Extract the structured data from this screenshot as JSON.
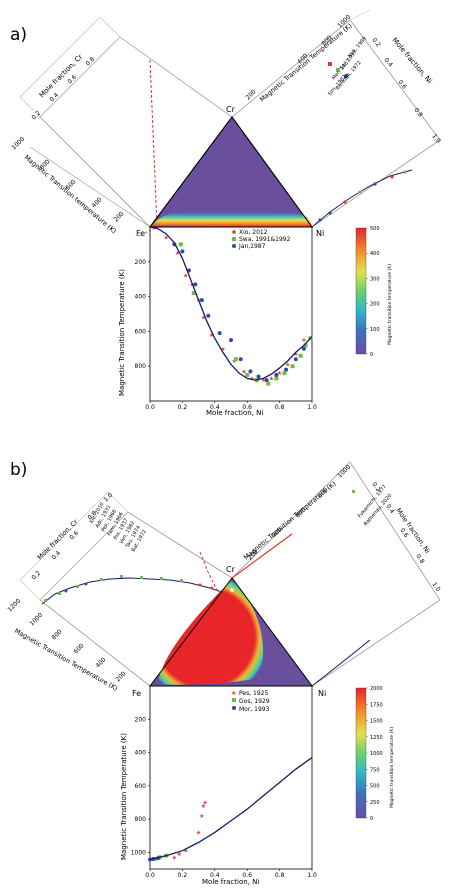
{
  "panels": [
    {
      "panel_label": "a)",
      "left_panel": {
        "axis_x_label": "Mole fraction, Cr",
        "axis_x_ticks": [
          "0.2",
          "0.4",
          "0.6",
          "0.8"
        ],
        "axis_y_label": "Magnetic Transition temperature (K)",
        "axis_y_ticks": [
          "200",
          "400",
          "600",
          "800",
          "1000"
        ]
      },
      "right_panel": {
        "axis_x_label": "Mole fraction, Ni",
        "axis_x_ticks": [
          "0.2",
          "0.4",
          "0.6",
          "0.8",
          "1.0"
        ],
        "axis_y_label": "Magnetic Transition Temperature (K)",
        "axis_y_ticks": [
          "200",
          "400",
          "600",
          "800",
          "1000"
        ],
        "legend": [
          "Nak, 1989",
          "Sai, 1937",
          "Mer, 1937",
          "Berezak, 1972",
          "Sim, 1982"
        ]
      },
      "vertices": {
        "top": "Cr",
        "left": "Fe",
        "right": "Ni"
      },
      "colorbar": {
        "label": "Magnetic transition temperature (K)",
        "ticks": [
          "0",
          "100",
          "200",
          "300",
          "400",
          "500"
        ]
      }
    },
    {
      "panel_label": "b)",
      "left_panel": {
        "axis_x_label": "Mole fraction, Cr",
        "axis_x_ticks": [
          "0.2",
          "0.4",
          "0.6",
          "0.8",
          "1.0"
        ],
        "axis_y_label": "Magnetic Transition Temperature (K)",
        "axis_y_ticks": [
          "200",
          "400",
          "600",
          "800",
          "1000",
          "1200"
        ],
        "legend": [
          "Xio, 2010",
          "Adc, 1931",
          "Pak, 1966",
          "Fam, 1966",
          "Iha, 1937",
          "Van, 1982",
          "Tau, 1974",
          "Bat, 1972"
        ]
      },
      "right_panel": {
        "axis_x_label": "Mole fraction, Ni",
        "axis_x_ticks": [
          "0.2",
          "0.4",
          "0.6",
          "0.8",
          "1.0"
        ],
        "axis_y_label": "Magnetic Transition Temperature (K)",
        "axis_y_ticks": [
          "200",
          "400",
          "600",
          "800",
          "1000"
        ],
        "legend": [
          "Fukamichi, 1977",
          "Rathenau, 2020"
        ]
      },
      "vertices": {
        "top": "Cr",
        "left": "Fe",
        "right": "Ni"
      },
      "colorbar": {
        "label": "Magnetic transition temperature (K)",
        "ticks": [
          "0",
          "250",
          "500",
          "750",
          "1000",
          "1250",
          "1500",
          "1750",
          "2000"
        ]
      }
    }
  ],
  "chart_data": [
    {
      "type": "scatter",
      "panel": "a) Fe-Ni binary",
      "xlabel": "Mole fraction, Ni",
      "ylabel": "Magnetic Transition Temperature (K)",
      "xlim": [
        0.0,
        1.0
      ],
      "ylim": [
        1000,
        0
      ],
      "x_ticks": [
        "0.0",
        "0.2",
        "0.4",
        "0.6",
        "0.8",
        "1.0"
      ],
      "y_ticks": [
        "200",
        "400",
        "600",
        "800"
      ],
      "legend_position": "top-right",
      "series": [
        {
          "name": "Xio, 2012",
          "marker": "star",
          "color": "#e03a2f",
          "x": [
            0.1,
            0.17,
            0.22,
            0.26,
            0.3,
            0.33,
            0.38,
            0.45,
            0.52,
            0.58,
            0.63,
            0.7,
            0.75,
            0.8,
            0.85,
            0.9,
            0.95
          ],
          "y": [
            60,
            150,
            280,
            330,
            420,
            520,
            620,
            700,
            770,
            830,
            870,
            880,
            870,
            840,
            790,
            730,
            650
          ]
        },
        {
          "name": "Swa, 1991&1992",
          "marker": "square",
          "color": "#6cbd45",
          "x": [
            0.19,
            0.27,
            0.53,
            0.6,
            0.66,
            0.73,
            0.78,
            0.83,
            0.88,
            0.93,
            0.96,
            0.99
          ],
          "y": [
            100,
            380,
            760,
            850,
            880,
            900,
            870,
            840,
            800,
            740,
            680,
            640
          ]
        },
        {
          "name": "Jan,1987",
          "marker": "circle",
          "color": "#2b4ea2",
          "x": [
            0.15,
            0.2,
            0.24,
            0.28,
            0.32,
            0.36,
            0.43,
            0.5,
            0.56,
            0.62,
            0.67,
            0.72,
            0.78,
            0.84,
            0.9,
            0.95
          ],
          "y": [
            100,
            140,
            250,
            330,
            420,
            510,
            610,
            650,
            760,
            830,
            860,
            880,
            850,
            820,
            760,
            700
          ]
        },
        {
          "name": "",
          "marker": "line",
          "color": "#1a1a6a",
          "x": [
            0.0,
            0.05,
            0.1,
            0.15,
            0.2,
            0.25,
            0.3,
            0.35,
            0.4,
            0.45,
            0.5,
            0.55,
            0.6,
            0.65,
            0.7,
            0.75,
            0.8,
            0.85,
            0.9,
            0.95,
            1.0
          ],
          "y": [
            0,
            10,
            40,
            90,
            180,
            300,
            420,
            540,
            640,
            720,
            790,
            840,
            870,
            880,
            870,
            845,
            810,
            770,
            720,
            680,
            630
          ]
        }
      ],
      "colorbar": {
        "label": "Magnetic transition temperature (K)",
        "range": [
          0,
          500
        ],
        "ticks": [
          "0",
          "100",
          "200",
          "300",
          "400",
          "500"
        ]
      }
    },
    {
      "type": "scatter",
      "panel": "b) Fe-Ni binary",
      "xlabel": "Mole fraction, Ni",
      "ylabel": "Magnetic Transition Temperature (K)",
      "xlim": [
        0.0,
        1.0
      ],
      "ylim": [
        1100,
        0
      ],
      "x_ticks": [
        "0.0",
        "0.2",
        "0.4",
        "0.6",
        "0.8",
        "1.0"
      ],
      "y_ticks": [
        "200",
        "400",
        "600",
        "800",
        "1000"
      ],
      "legend_position": "top-right",
      "series": [
        {
          "name": "Pes, 1925",
          "marker": "star",
          "color": "#e03a2f",
          "x": [
            0.15,
            0.18,
            0.22,
            0.3,
            0.32,
            0.33,
            0.34
          ],
          "y": [
            1030,
            1010,
            990,
            880,
            780,
            720,
            700
          ]
        },
        {
          "name": "Gos, 1929",
          "marker": "square",
          "color": "#6cbd45",
          "x": [
            0.03,
            0.06,
            0.1
          ],
          "y": [
            1040,
            1030,
            1020
          ]
        },
        {
          "name": "Mor, 1993",
          "marker": "circle",
          "color": "#2b4ea2",
          "x": [
            0.0,
            0.02,
            0.05
          ],
          "y": [
            1043,
            1040,
            1035
          ]
        },
        {
          "name": "",
          "marker": "line",
          "color": "#1a1a6a",
          "x": [
            0.0,
            0.1,
            0.2,
            0.3,
            0.4,
            0.5,
            0.6,
            0.7,
            0.8,
            0.9,
            1.0
          ],
          "y": [
            1043,
            1020,
            990,
            940,
            880,
            810,
            740,
            660,
            580,
            500,
            430
          ]
        }
      ],
      "colorbar": {
        "label": "Magnetic transition temperature (K)",
        "range": [
          0,
          2000
        ],
        "ticks": [
          "0",
          "250",
          "500",
          "750",
          "1000",
          "1250",
          "1500",
          "1750",
          "2000"
        ]
      }
    }
  ]
}
